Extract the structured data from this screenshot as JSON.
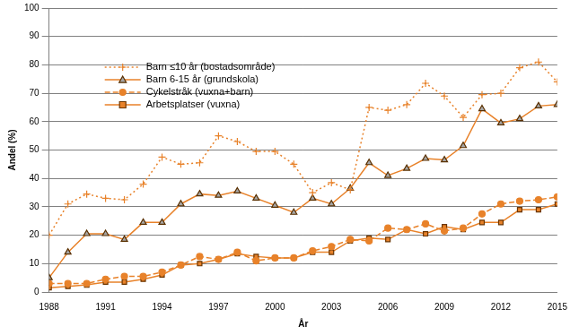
{
  "chart_data": {
    "type": "line",
    "x_label": "År",
    "y_label": "Andel (%)",
    "x": [
      1988,
      1989,
      1990,
      1991,
      1992,
      1993,
      1994,
      1995,
      1996,
      1997,
      1998,
      1999,
      2000,
      2001,
      2002,
      2003,
      2004,
      2005,
      2006,
      2007,
      2008,
      2009,
      2010,
      2011,
      2012,
      2013,
      2014,
      2015
    ],
    "xlim": [
      1988,
      2015
    ],
    "xticks": [
      1988,
      1991,
      1994,
      1997,
      2000,
      2003,
      2006,
      2009,
      2012,
      2015
    ],
    "ylim": [
      0,
      100
    ],
    "yticks": [
      0,
      10,
      20,
      30,
      40,
      50,
      60,
      70,
      80,
      90,
      100
    ],
    "grid": true,
    "legend": "upper left",
    "series": [
      {
        "name": "Barn ≤10 år (bostadsområde)",
        "color": "#e8822a",
        "marker": "plus",
        "line_style": "dotted",
        "values": [
          20,
          31,
          34.5,
          33,
          32.5,
          38,
          47.5,
          45,
          45.5,
          55,
          53,
          49.5,
          49.5,
          45,
          35,
          38.5,
          36,
          65,
          64,
          66,
          73.5,
          69,
          61.5,
          69.5,
          70,
          79,
          81,
          74
        ]
      },
      {
        "name": "Barn 6-15 år (grundskola)",
        "color": "#e8822a",
        "marker": "triangle",
        "line_style": "solid",
        "values": [
          5,
          14,
          20.5,
          20.5,
          18.5,
          24.5,
          24.5,
          31,
          34.5,
          34,
          35.5,
          33,
          30.5,
          28,
          33,
          31,
          36.5,
          45.5,
          41,
          43.5,
          47,
          46.5,
          51.5,
          64.5,
          59.5,
          61,
          65.5,
          66
        ]
      },
      {
        "name": "Cykelstråk (vuxna+barn)",
        "color": "#e8822a",
        "marker": "circle",
        "line_style": "dashed",
        "values": [
          3,
          3,
          3,
          4.5,
          5.5,
          5.5,
          7,
          9.5,
          12.5,
          11.5,
          14,
          11,
          12,
          12,
          14.5,
          16,
          18.5,
          18,
          22.5,
          22,
          24,
          21.5,
          22.5,
          27.5,
          31,
          32,
          32.5,
          33.5
        ]
      },
      {
        "name": "Arbetsplatser (vuxna)",
        "color": "#e8822a",
        "marker": "square",
        "line_style": "solid",
        "values": [
          1.5,
          2,
          2.5,
          3.5,
          3.5,
          4.5,
          6,
          9.5,
          10,
          11.5,
          13.5,
          12.5,
          12,
          12,
          14,
          14,
          18,
          19,
          18.5,
          22,
          20.5,
          23,
          22,
          24.5,
          24.5,
          29,
          29,
          31
        ]
      }
    ]
  }
}
